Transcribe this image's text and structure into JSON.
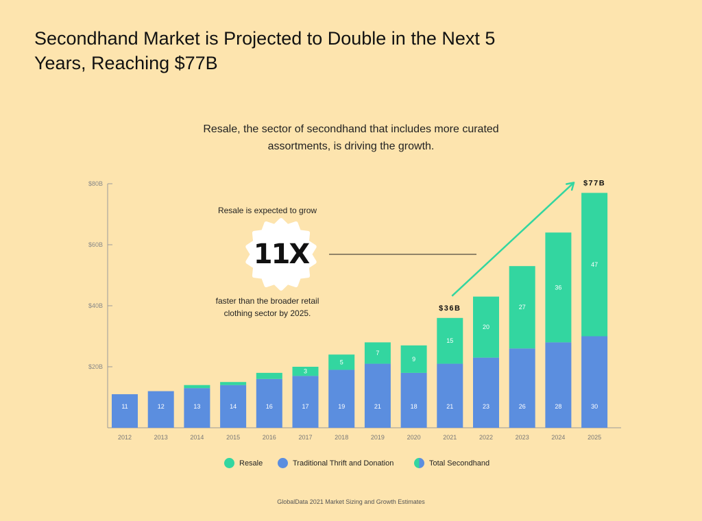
{
  "title": "Secondhand Market is Projected to Double in the Next 5 Years, Reaching $77B",
  "subtitle": "Resale, the sector of secondhand that includes more curated assortments, is driving the growth.",
  "callout": {
    "top_text": "Resale is expected to grow",
    "badge": "11X",
    "bottom_text": "faster than the broader retail clothing sector by 2025."
  },
  "source": "GlobalData 2021 Market Sizing and Growth Estimates",
  "colors": {
    "resale": "#33D6A0",
    "thrift": "#5B8EDF",
    "background": "#FDE4AE"
  },
  "chart_data": {
    "type": "bar",
    "stacked": true,
    "categories": [
      "2012",
      "2013",
      "2014",
      "2015",
      "2016",
      "2017",
      "2018",
      "2019",
      "2020",
      "2021",
      "2022",
      "2023",
      "2024",
      "2025"
    ],
    "series": [
      {
        "name": "Traditional Thrift and Donation",
        "values": [
          11,
          12,
          13,
          14,
          16,
          17,
          19,
          21,
          18,
          21,
          23,
          26,
          28,
          30
        ],
        "labels": [
          "11",
          "12",
          "13",
          "14",
          "16",
          "17",
          "19",
          "21",
          "18",
          "21",
          "23",
          "26",
          "28",
          "30"
        ]
      },
      {
        "name": "Resale",
        "values": [
          0,
          0,
          1,
          1,
          2,
          3,
          5,
          7,
          9,
          15,
          20,
          27,
          36,
          47
        ],
        "labels": [
          "",
          "",
          "",
          "",
          "",
          "3",
          "5",
          "7",
          "9",
          "15",
          "20",
          "27",
          "36",
          "47"
        ]
      }
    ],
    "y_ticks": [
      {
        "value": 20,
        "label": "$20B"
      },
      {
        "value": 40,
        "label": "$40B"
      },
      {
        "value": 60,
        "label": "$60B"
      },
      {
        "value": 80,
        "label": "$80B"
      }
    ],
    "ylim": [
      0,
      80
    ],
    "total_annotations": [
      {
        "category": "2021",
        "value": 36,
        "label": "$36B"
      },
      {
        "category": "2025",
        "value": 77,
        "label": "$77B"
      }
    ],
    "legend": [
      "Resale",
      "Traditional Thrift and Donation",
      "Total Secondhand"
    ],
    "legend_position": "bottom",
    "grid": false
  }
}
